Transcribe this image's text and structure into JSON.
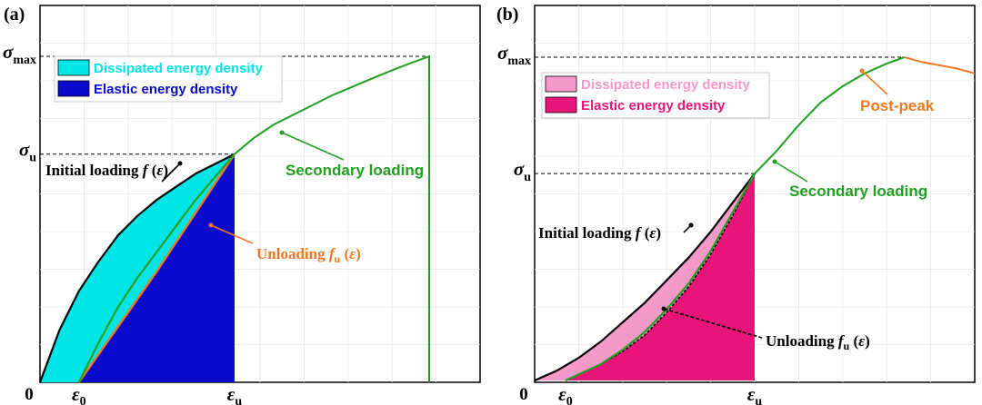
{
  "chart_data": [
    {
      "panel_label": "(a)",
      "type": "line",
      "origin_label": "0",
      "x_ticks": [
        {
          "sym": "ε",
          "sub": "0",
          "x": 0.1
        },
        {
          "sym": "ε",
          "sub": "u",
          "x": 0.5
        }
      ],
      "y_ticks": [
        {
          "sym": "σ",
          "sub": "u",
          "y": 0.7
        },
        {
          "sym": "σ",
          "sub": "max",
          "y": 1.0
        }
      ],
      "legend": [
        {
          "label": "Dissipated energy density",
          "color": "#00e5e5",
          "text_color": "#00e5e5"
        },
        {
          "label": "Elastic energy density",
          "color": "#0a0acc",
          "text_color": "#0a0acc"
        }
      ],
      "annotations": {
        "initial": {
          "text": "Initial loading ",
          "fn": "f",
          "arg": "ε",
          "color": "#000000"
        },
        "unloading": {
          "text": "Unloading ",
          "fn": "f",
          "sub": "u",
          "arg": "ε",
          "color": "#f07820"
        },
        "secondary": {
          "text": "Secondary loading",
          "color": "#20a020"
        }
      },
      "series": [
        {
          "role": "initial-loading",
          "color": "#000000",
          "x": [
            0,
            0.05,
            0.1,
            0.15,
            0.2,
            0.25,
            0.3,
            0.35,
            0.4,
            0.45,
            0.5
          ],
          "y": [
            0,
            0.16,
            0.28,
            0.37,
            0.45,
            0.51,
            0.56,
            0.6,
            0.64,
            0.67,
            0.7
          ]
        },
        {
          "role": "unloading",
          "color": "#f07820",
          "x": [
            0.1,
            0.2,
            0.3,
            0.4,
            0.5
          ],
          "y": [
            0,
            0.17,
            0.34,
            0.52,
            0.7
          ]
        },
        {
          "role": "reloading",
          "color": "#20a020",
          "x": [
            0.1,
            0.15,
            0.2,
            0.25,
            0.3,
            0.35,
            0.4,
            0.45,
            0.5
          ],
          "y": [
            0,
            0.12,
            0.23,
            0.32,
            0.4,
            0.48,
            0.56,
            0.63,
            0.7
          ]
        },
        {
          "role": "secondary-loading",
          "color": "#20a020",
          "x": [
            0.5,
            0.55,
            0.6,
            0.65,
            0.7,
            0.75,
            0.8,
            0.85,
            0.9,
            0.95,
            1.0,
            1.0
          ],
          "y": [
            0.7,
            0.75,
            0.79,
            0.82,
            0.85,
            0.88,
            0.905,
            0.93,
            0.955,
            0.978,
            1.0,
            0
          ]
        }
      ]
    },
    {
      "panel_label": "(b)",
      "type": "line",
      "origin_label": "0",
      "x_ticks": [
        {
          "sym": "ε",
          "sub": "0",
          "x": 0.07
        },
        {
          "sym": "ε",
          "sub": "u",
          "x": 0.5
        }
      ],
      "y_ticks": [
        {
          "sym": "σ",
          "sub": "u",
          "y": 0.64
        },
        {
          "sym": "σ",
          "sub": "max",
          "y": 1.0
        }
      ],
      "legend": [
        {
          "label": "Dissipated energy density",
          "color": "#f59ac8",
          "text_color": "#f59ac8"
        },
        {
          "label": "Elastic energy density",
          "color": "#e8147a",
          "text_color": "#e8147a"
        }
      ],
      "annotations": {
        "initial": {
          "text": "Initial loading ",
          "fn": "f",
          "arg": "ε",
          "color": "#000000"
        },
        "unloading": {
          "text": "Unloading ",
          "fn": "f",
          "sub": "u",
          "arg": "ε",
          "color": "#000000"
        },
        "secondary": {
          "text": "Secondary loading",
          "color": "#20a020"
        },
        "postpeak": {
          "text": "Post-peak",
          "color": "#f07820"
        }
      },
      "series": [
        {
          "role": "initial-loading",
          "color": "#000000",
          "x": [
            0,
            0.05,
            0.1,
            0.15,
            0.2,
            0.25,
            0.3,
            0.35,
            0.4,
            0.45,
            0.5
          ],
          "y": [
            0,
            0.03,
            0.07,
            0.12,
            0.18,
            0.24,
            0.31,
            0.38,
            0.46,
            0.55,
            0.64
          ]
        },
        {
          "role": "unloading",
          "color": "#000000",
          "x": [
            0.07,
            0.15,
            0.2,
            0.25,
            0.3,
            0.35,
            0.4,
            0.45,
            0.5
          ],
          "y": [
            0,
            0.05,
            0.09,
            0.14,
            0.21,
            0.29,
            0.39,
            0.51,
            0.64
          ]
        },
        {
          "role": "reloading",
          "color": "#20a020",
          "x": [
            0.07,
            0.15,
            0.2,
            0.25,
            0.3,
            0.35,
            0.4,
            0.45,
            0.5
          ],
          "y": [
            0,
            0.05,
            0.095,
            0.15,
            0.22,
            0.3,
            0.4,
            0.52,
            0.64
          ]
        },
        {
          "role": "secondary-loading",
          "color": "#20a020",
          "x": [
            0.5,
            0.55,
            0.6,
            0.65,
            0.7,
            0.75,
            0.8,
            0.84
          ],
          "y": [
            0.64,
            0.71,
            0.79,
            0.86,
            0.91,
            0.95,
            0.98,
            1.0
          ]
        },
        {
          "role": "post-peak",
          "color": "#f07820",
          "x": [
            0.84,
            0.88,
            0.92,
            0.96,
            1.0
          ],
          "y": [
            1.0,
            0.985,
            0.975,
            0.965,
            0.95
          ]
        }
      ]
    }
  ]
}
